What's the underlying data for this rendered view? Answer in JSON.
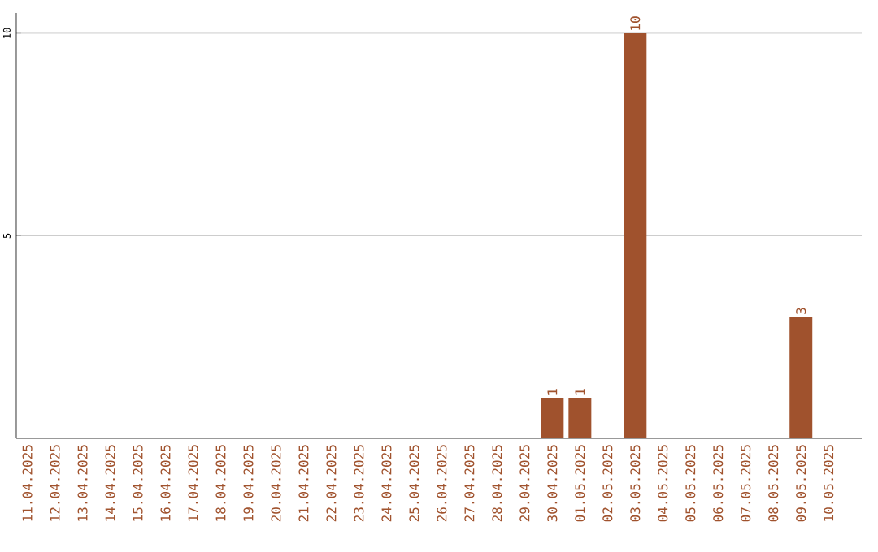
{
  "chart_data": {
    "type": "bar",
    "color": "#a0522d",
    "categories": [
      "11.04.2025",
      "12.04.2025",
      "13.04.2025",
      "14.04.2025",
      "15.04.2025",
      "16.04.2025",
      "17.04.2025",
      "18.04.2025",
      "19.04.2025",
      "20.04.2025",
      "21.04.2025",
      "22.04.2025",
      "23.04.2025",
      "24.04.2025",
      "25.04.2025",
      "26.04.2025",
      "27.04.2025",
      "28.04.2025",
      "29.04.2025",
      "30.04.2025",
      "01.05.2025",
      "02.05.2025",
      "03.05.2025",
      "04.05.2025",
      "05.05.2025",
      "06.05.2025",
      "07.05.2025",
      "08.05.2025",
      "09.05.2025",
      "10.05.2025"
    ],
    "values": [
      0,
      0,
      0,
      0,
      0,
      0,
      0,
      0,
      0,
      0,
      0,
      0,
      0,
      0,
      0,
      0,
      0,
      0,
      0,
      1,
      1,
      0,
      10,
      0,
      0,
      0,
      0,
      0,
      3,
      0
    ],
    "value_labels": [
      null,
      null,
      null,
      null,
      null,
      null,
      null,
      null,
      null,
      null,
      null,
      null,
      null,
      null,
      null,
      null,
      null,
      null,
      null,
      "1",
      "1",
      null,
      "10",
      null,
      null,
      null,
      null,
      null,
      "3",
      null
    ],
    "ylim": [
      0,
      10.5
    ],
    "yticks": [
      5,
      10
    ],
    "grid": "y"
  }
}
